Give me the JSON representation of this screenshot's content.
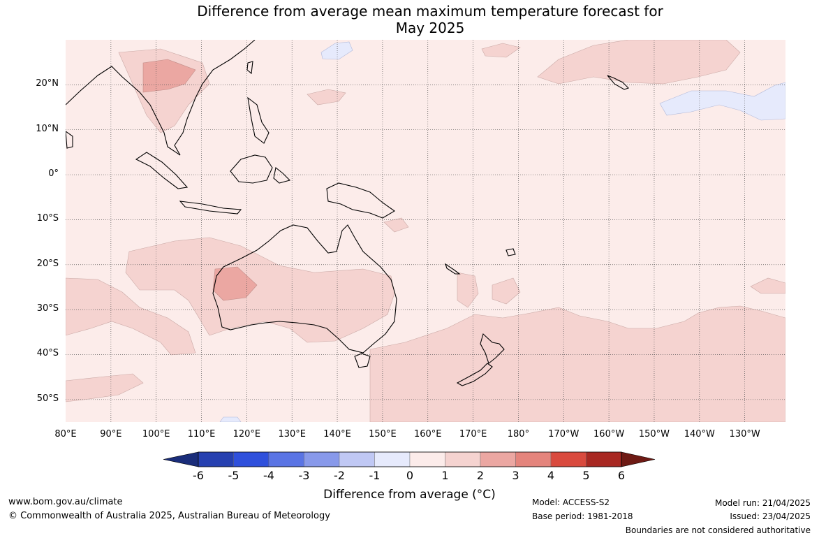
{
  "title_line1": "Difference from average mean maximum temperature forecast for",
  "title_line2": "May 2025",
  "lat_labels": [
    "20°N",
    "10°N",
    "0°",
    "10°S",
    "20°S",
    "30°S",
    "40°S",
    "50°S"
  ],
  "lon_labels": [
    "80°E",
    "90°E",
    "100°E",
    "110°E",
    "120°E",
    "130°E",
    "140°E",
    "150°E",
    "160°E",
    "170°E",
    "180°",
    "170°W",
    "160°W",
    "150°W",
    "140°W",
    "130°W"
  ],
  "map_extent": {
    "lon_min": 80,
    "lon_max": 239,
    "lat_min": -55,
    "lat_max": 30
  },
  "colorbar": {
    "ticks": [
      "-6",
      "-5",
      "-4",
      "-3",
      "-2",
      "-1",
      "0",
      "1",
      "2",
      "3",
      "4",
      "5",
      "6"
    ],
    "colors": [
      "#1a2d7a",
      "#2640b0",
      "#2f50dc",
      "#5a74e4",
      "#8899ea",
      "#c0c8f4",
      "#e6eafc",
      "#fcecea",
      "#f5d3d0",
      "#eba7a2",
      "#e4847c",
      "#d94a3e",
      "#a82822",
      "#6e1a14"
    ],
    "label": "Difference from average (°C)"
  },
  "footer": {
    "website": "www.bom.gov.au/climate",
    "copyright": "© Commonwealth of Australia 2025, Australian Bureau of Meteorology",
    "model": "Model: ACCESS-S2",
    "base_period": "Base period: 1981-2018",
    "model_run": "Model run: 21/04/2025",
    "issued": "Issued: 23/04/2025",
    "disclaimer": "Boundaries are not considered authoritative"
  }
}
